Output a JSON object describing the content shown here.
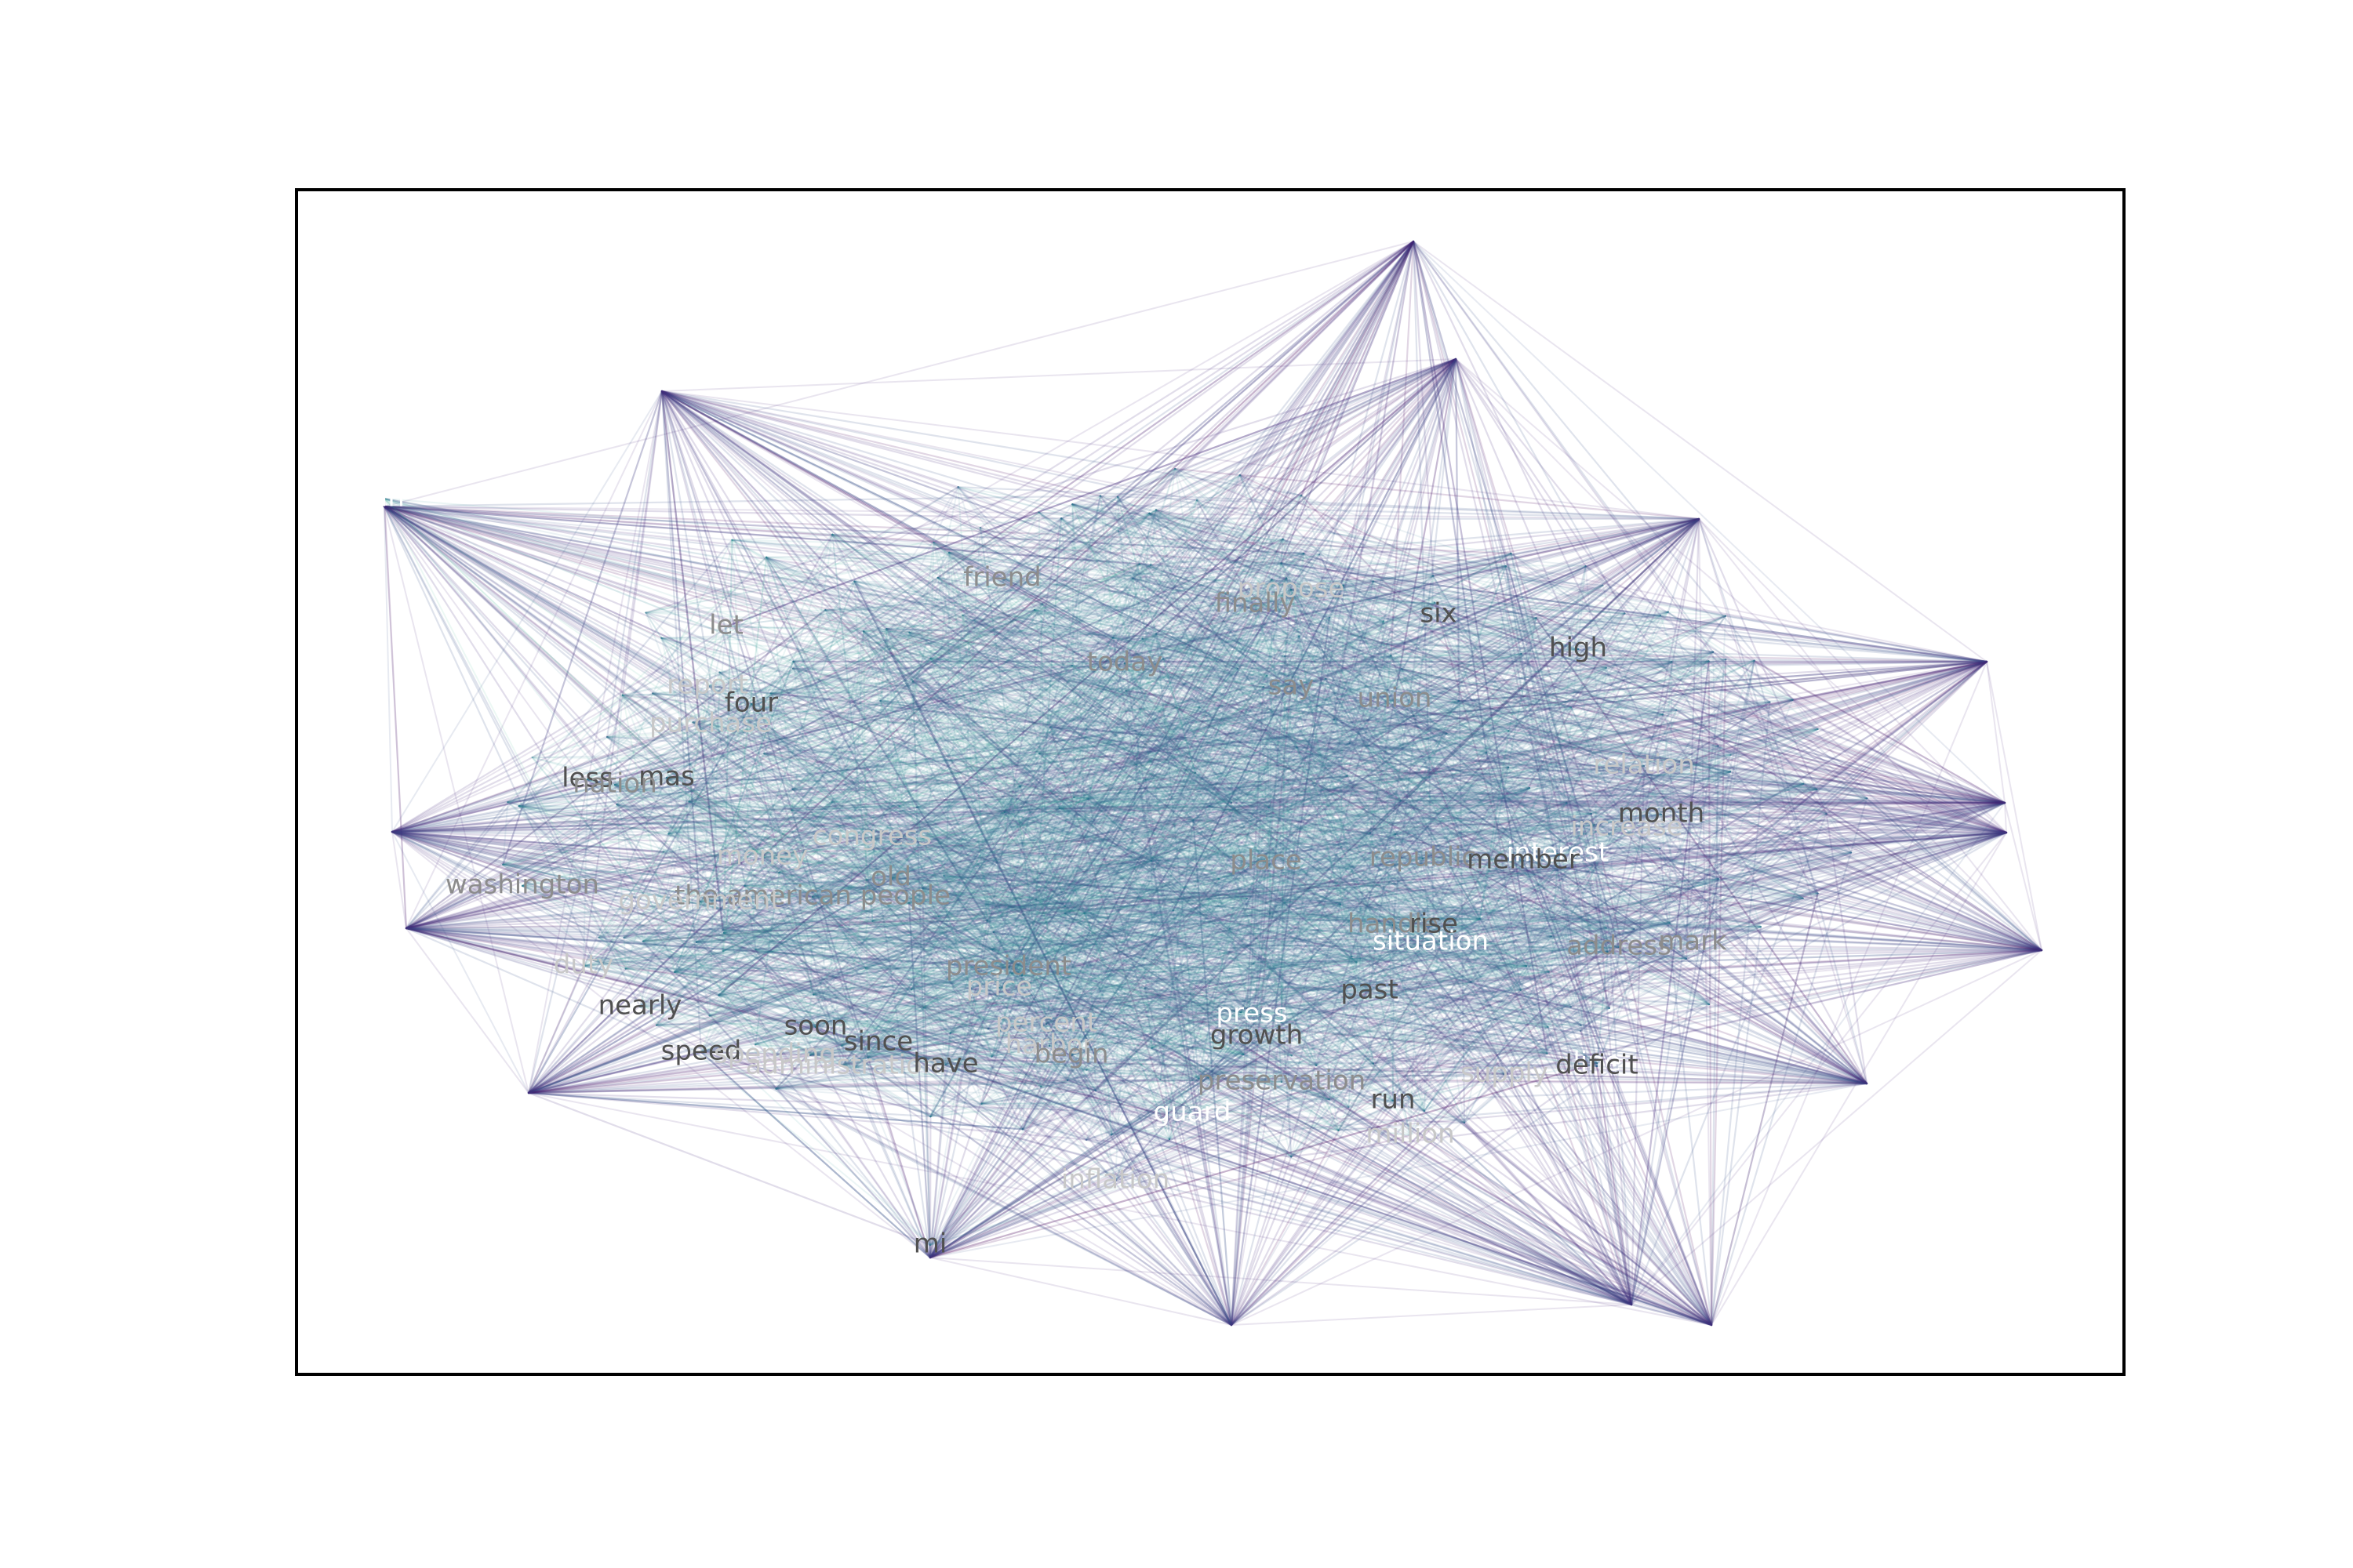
{
  "figure": {
    "frame_color": "#000000",
    "background": "#ffffff"
  },
  "graph": {
    "edge_colormap": [
      "#440154",
      "#472d7b",
      "#3b528b",
      "#2c728e",
      "#21918c",
      "#28ae80",
      "#5ec962"
    ],
    "labels": [
      {
        "text": "ain",
        "color": "#ffffff"
      },
      {
        "text": "friend",
        "color": "#8c8c8c"
      },
      {
        "text": "propose",
        "color": "#c8c8c8"
      },
      {
        "text": "finally",
        "color": "#8c8c8c"
      },
      {
        "text": "six",
        "color": "#505050"
      },
      {
        "text": "let",
        "color": "#8c8c8c"
      },
      {
        "text": "high",
        "color": "#505050"
      },
      {
        "text": "today",
        "color": "#8c8c8c"
      },
      {
        "text": "report",
        "color": "#c8c8c8"
      },
      {
        "text": "say",
        "color": "#8c8c8c"
      },
      {
        "text": "union",
        "color": "#8c8c8c"
      },
      {
        "text": "four",
        "color": "#505050"
      },
      {
        "text": "purchase",
        "color": "#c8c8c8"
      },
      {
        "text": "relation",
        "color": "#c8c8c8"
      },
      {
        "text": "less",
        "color": "#505050"
      },
      {
        "text": "mas",
        "color": "#505050"
      },
      {
        "text": "nation",
        "color": "#8c8c8c"
      },
      {
        "text": "month",
        "color": "#505050"
      },
      {
        "text": "increase",
        "color": "#c8c8c8"
      },
      {
        "text": "congress",
        "color": "#c8c8c8"
      },
      {
        "text": "interest",
        "color": "#ffffff"
      },
      {
        "text": "money",
        "color": "#c8c8c8"
      },
      {
        "text": "republic",
        "color": "#8c8c8c"
      },
      {
        "text": "member",
        "color": "#505050"
      },
      {
        "text": "place",
        "color": "#8c8c8c"
      },
      {
        "text": "old",
        "color": "#8c8c8c"
      },
      {
        "text": "washington",
        "color": "#8c8c8c"
      },
      {
        "text": "the american people",
        "color": "#8c8c8c"
      },
      {
        "text": "government",
        "color": "#c8c8c8"
      },
      {
        "text": "handle",
        "color": "#8c8c8c"
      },
      {
        "text": "rise",
        "color": "#505050"
      },
      {
        "text": "situation",
        "color": "#ffffff"
      },
      {
        "text": "address",
        "color": "#8c8c8c"
      },
      {
        "text": "mark",
        "color": "#8c8c8c"
      },
      {
        "text": "duty",
        "color": "#c8c8c8"
      },
      {
        "text": "president",
        "color": "#8c8c8c"
      },
      {
        "text": "price",
        "color": "#c8c8c8"
      },
      {
        "text": "past",
        "color": "#505050"
      },
      {
        "text": "nearly",
        "color": "#505050"
      },
      {
        "text": "press",
        "color": "#ffffff"
      },
      {
        "text": "soon",
        "color": "#505050"
      },
      {
        "text": "percent",
        "color": "#c8c8c8"
      },
      {
        "text": "growth",
        "color": "#505050"
      },
      {
        "text": "since",
        "color": "#505050"
      },
      {
        "text": "harbor",
        "color": "#c8c8c8"
      },
      {
        "text": "speed",
        "color": "#505050"
      },
      {
        "text": "spending",
        "color": "#c8c8c8"
      },
      {
        "text": "administration",
        "color": "#c8c8c8"
      },
      {
        "text": "have",
        "color": "#505050"
      },
      {
        "text": "begin",
        "color": "#8c8c8c"
      },
      {
        "text": "line",
        "color": "#ffffff"
      },
      {
        "text": "deficit",
        "color": "#505050"
      },
      {
        "text": "supply",
        "color": "#c8c8c8"
      },
      {
        "text": "preservation",
        "color": "#8c8c8c"
      },
      {
        "text": "run",
        "color": "#505050"
      },
      {
        "text": "guard",
        "color": "#ffffff"
      },
      {
        "text": "million",
        "color": "#c8c8c8"
      },
      {
        "text": "inflation",
        "color": "#c8c8c8"
      },
      {
        "text": "mi",
        "color": "#505050"
      }
    ]
  }
}
